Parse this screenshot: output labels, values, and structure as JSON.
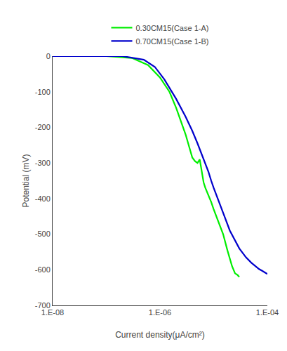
{
  "chart_data": {
    "type": "line",
    "xlabel": "Current density(μA/cm²)",
    "ylabel": "Potential (mV)",
    "log": "x",
    "xlim": [
      1e-08,
      0.0001
    ],
    "xticks": [
      {
        "value": 1e-08,
        "label": "1.E-08"
      },
      {
        "value": 1e-06,
        "label": "1.E-06"
      },
      {
        "value": 0.0001,
        "label": "1.E-04"
      }
    ],
    "ylim": [
      -700,
      0
    ],
    "yticks": [
      0,
      -100,
      -200,
      -300,
      -400,
      -500,
      -600,
      -700
    ],
    "grid": false,
    "legend": "top",
    "series": [
      {
        "name": "0.30CM15(Case 1-A)",
        "color": "#00EE00",
        "x": [
          1e-08,
          1e-07,
          3e-07,
          6e-07,
          1e-06,
          1.5e-06,
          2e-06,
          2.5e-06,
          3e-06,
          3.5e-06,
          4e-06,
          4.5e-06,
          5e-06,
          5.5e-06,
          5.8e-06,
          6.2e-06,
          6.5e-06,
          7e-06,
          8e-06,
          9e-06,
          1e-05,
          1.2e-05,
          1.5e-05,
          1.8e-05,
          2e-05,
          2.2e-05,
          2.5e-05,
          2.8e-05,
          3e-05
        ],
        "values": [
          0,
          0,
          -5,
          -25,
          -60,
          -100,
          -145,
          -185,
          -220,
          -255,
          -285,
          -295,
          -300,
          -290,
          -310,
          -340,
          -355,
          -370,
          -390,
          -410,
          -430,
          -460,
          -500,
          -545,
          -570,
          -590,
          -610,
          -615,
          -620
        ]
      },
      {
        "name": "0.70CM15(Case 1-B)",
        "color": "#0000CC",
        "x": [
          1e-08,
          2e-07,
          5e-07,
          8e-07,
          1.2e-06,
          2e-06,
          3e-06,
          4e-06,
          5e-06,
          6e-06,
          7e-06,
          8e-06,
          9e-06,
          1e-05,
          1.5e-05,
          2e-05,
          3e-05,
          4e-05,
          5e-05,
          6e-05,
          7e-05,
          8e-05,
          9e-05,
          0.0001
        ],
        "values": [
          0,
          0,
          -10,
          -30,
          -65,
          -120,
          -170,
          -210,
          -245,
          -275,
          -300,
          -325,
          -350,
          -370,
          -440,
          -490,
          -540,
          -565,
          -580,
          -590,
          -598,
          -603,
          -608,
          -612
        ]
      }
    ]
  }
}
